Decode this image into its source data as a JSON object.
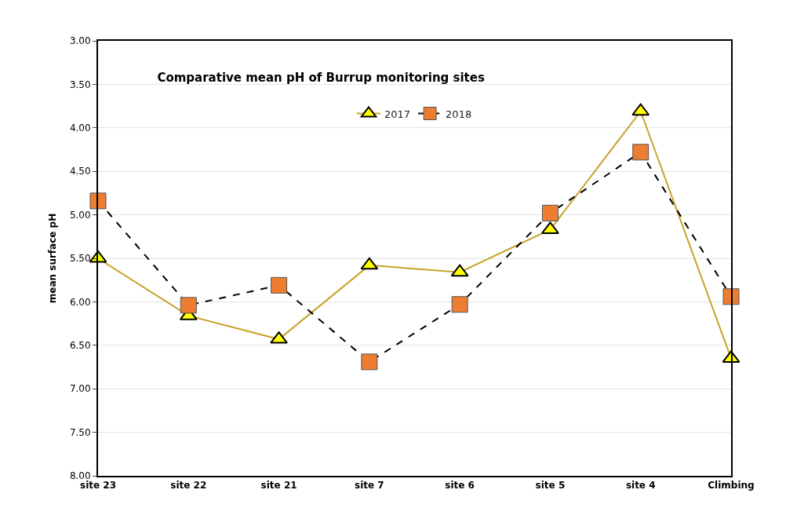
{
  "chart_data": {
    "type": "line",
    "title": "Comparative mean pH of Burrup monitoring sites",
    "ylabel": "mean surface pH",
    "categories": [
      "site 23",
      "site 22",
      "site 21",
      "site 7",
      "site 6",
      "site 5",
      "site 4",
      "Climbing"
    ],
    "series": [
      {
        "name": "2017",
        "color": "#c9a227",
        "values": [
          5.5,
          6.16,
          6.43,
          5.58,
          5.66,
          5.17,
          3.81,
          6.65
        ],
        "marker": "triangle",
        "line_style": "solid"
      },
      {
        "name": "2018",
        "color": "#ed7d31",
        "values": [
          4.84,
          6.04,
          5.81,
          6.69,
          6.03,
          4.98,
          4.28,
          5.94
        ],
        "marker": "square",
        "line_style": "dashed"
      }
    ],
    "ylim": [
      8.0,
      3.0
    ],
    "yticks": [
      {
        "value": 3,
        "label": "3.00"
      },
      {
        "value": 3.5,
        "label": "3.50"
      },
      {
        "value": 4,
        "label": "4.00"
      },
      {
        "value": 4.5,
        "label": "4.50"
      },
      {
        "value": 5,
        "label": "5.00"
      },
      {
        "value": 5.5,
        "label": "5.50"
      },
      {
        "value": 6,
        "label": "6.00"
      },
      {
        "value": 6.5,
        "label": "6.50"
      },
      {
        "value": 7,
        "label": "7.00"
      },
      {
        "value": 7.5,
        "label": "7.50"
      },
      {
        "value": 8,
        "label": "8.00"
      }
    ],
    "grid": "y",
    "legend": "top"
  }
}
